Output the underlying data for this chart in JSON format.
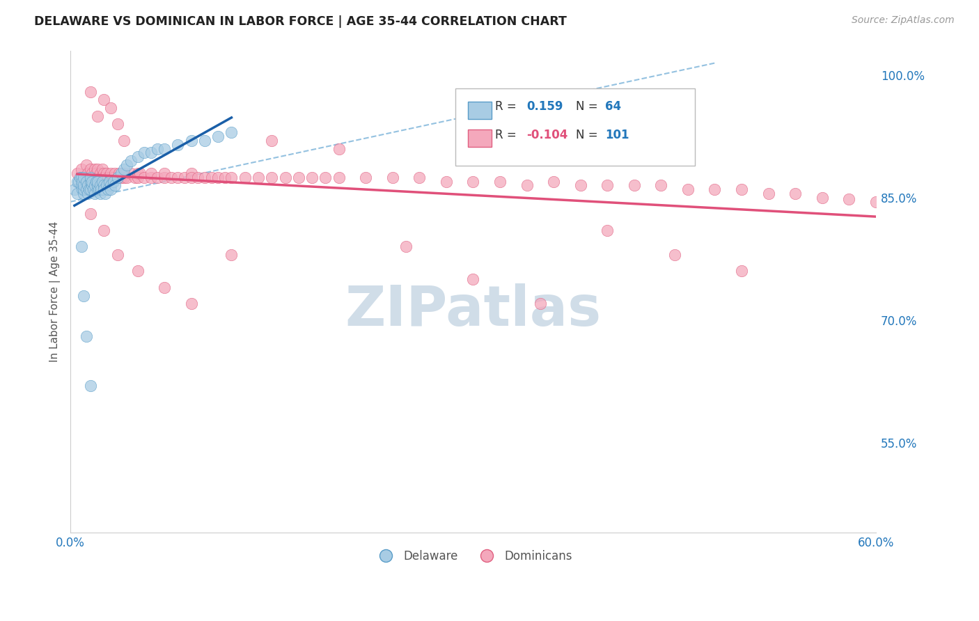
{
  "title": "DELAWARE VS DOMINICAN IN LABOR FORCE | AGE 35-44 CORRELATION CHART",
  "source": "Source: ZipAtlas.com",
  "ylabel": "In Labor Force | Age 35-44",
  "right_yticks": [
    0.55,
    0.7,
    0.85,
    1.0
  ],
  "right_yticklabels": [
    "55.0%",
    "70.0%",
    "85.0%",
    "100.0%"
  ],
  "xlim": [
    0.0,
    0.6
  ],
  "ylim": [
    0.44,
    1.03
  ],
  "legend_r_blue_val": "0.159",
  "legend_n_blue_val": "64",
  "legend_r_pink_val": "-0.104",
  "legend_n_pink_val": "101",
  "blue_color": "#a8cce4",
  "blue_edge_color": "#5a9dc8",
  "pink_color": "#f4a8bc",
  "pink_edge_color": "#e06080",
  "blue_line_color": "#1a5fa8",
  "pink_line_color": "#e0507a",
  "dashed_line_color": "#88bbdd",
  "watermark": "ZIPatlas",
  "watermark_color": "#d0dde8",
  "background_color": "#ffffff",
  "grid_color": "#cccccc",
  "blue_scatter_x": [
    0.003,
    0.005,
    0.005,
    0.006,
    0.007,
    0.008,
    0.008,
    0.009,
    0.009,
    0.01,
    0.01,
    0.01,
    0.01,
    0.012,
    0.012,
    0.013,
    0.013,
    0.014,
    0.015,
    0.015,
    0.015,
    0.016,
    0.016,
    0.017,
    0.018,
    0.018,
    0.019,
    0.02,
    0.02,
    0.02,
    0.021,
    0.022,
    0.022,
    0.023,
    0.024,
    0.025,
    0.025,
    0.026,
    0.027,
    0.028,
    0.029,
    0.03,
    0.03,
    0.032,
    0.033,
    0.035,
    0.038,
    0.04,
    0.042,
    0.045,
    0.05,
    0.055,
    0.06,
    0.065,
    0.07,
    0.08,
    0.09,
    0.1,
    0.11,
    0.12,
    0.008,
    0.01,
    0.012,
    0.015
  ],
  "blue_scatter_y": [
    0.86,
    0.87,
    0.855,
    0.87,
    0.875,
    0.865,
    0.875,
    0.86,
    0.87,
    0.855,
    0.86,
    0.865,
    0.875,
    0.86,
    0.87,
    0.855,
    0.865,
    0.86,
    0.87,
    0.875,
    0.86,
    0.865,
    0.87,
    0.86,
    0.855,
    0.865,
    0.87,
    0.86,
    0.865,
    0.87,
    0.86,
    0.855,
    0.865,
    0.86,
    0.87,
    0.865,
    0.86,
    0.855,
    0.865,
    0.86,
    0.87,
    0.865,
    0.86,
    0.87,
    0.865,
    0.875,
    0.88,
    0.885,
    0.89,
    0.895,
    0.9,
    0.905,
    0.905,
    0.91,
    0.91,
    0.915,
    0.92,
    0.92,
    0.925,
    0.93,
    0.79,
    0.73,
    0.68,
    0.62
  ],
  "pink_scatter_x": [
    0.005,
    0.008,
    0.01,
    0.012,
    0.013,
    0.015,
    0.015,
    0.016,
    0.017,
    0.018,
    0.019,
    0.02,
    0.02,
    0.022,
    0.023,
    0.024,
    0.025,
    0.025,
    0.027,
    0.028,
    0.03,
    0.03,
    0.032,
    0.033,
    0.035,
    0.036,
    0.038,
    0.04,
    0.04,
    0.042,
    0.045,
    0.048,
    0.05,
    0.05,
    0.052,
    0.055,
    0.06,
    0.06,
    0.065,
    0.07,
    0.07,
    0.075,
    0.08,
    0.085,
    0.09,
    0.09,
    0.095,
    0.1,
    0.105,
    0.11,
    0.115,
    0.12,
    0.13,
    0.14,
    0.15,
    0.16,
    0.17,
    0.18,
    0.19,
    0.2,
    0.22,
    0.24,
    0.26,
    0.28,
    0.3,
    0.32,
    0.34,
    0.36,
    0.38,
    0.4,
    0.42,
    0.44,
    0.46,
    0.48,
    0.5,
    0.52,
    0.54,
    0.56,
    0.58,
    0.6,
    0.025,
    0.03,
    0.035,
    0.04,
    0.015,
    0.02,
    0.015,
    0.025,
    0.035,
    0.05,
    0.07,
    0.09,
    0.12,
    0.15,
    0.2,
    0.25,
    0.3,
    0.35,
    0.4,
    0.45,
    0.5
  ],
  "pink_scatter_y": [
    0.88,
    0.885,
    0.875,
    0.89,
    0.88,
    0.875,
    0.885,
    0.88,
    0.875,
    0.885,
    0.88,
    0.875,
    0.885,
    0.88,
    0.875,
    0.885,
    0.88,
    0.875,
    0.88,
    0.875,
    0.875,
    0.88,
    0.875,
    0.88,
    0.875,
    0.88,
    0.875,
    0.875,
    0.88,
    0.875,
    0.88,
    0.875,
    0.88,
    0.875,
    0.88,
    0.875,
    0.875,
    0.88,
    0.875,
    0.875,
    0.88,
    0.875,
    0.875,
    0.875,
    0.88,
    0.875,
    0.875,
    0.875,
    0.875,
    0.875,
    0.875,
    0.875,
    0.875,
    0.875,
    0.875,
    0.875,
    0.875,
    0.875,
    0.875,
    0.875,
    0.875,
    0.875,
    0.875,
    0.87,
    0.87,
    0.87,
    0.865,
    0.87,
    0.865,
    0.865,
    0.865,
    0.865,
    0.86,
    0.86,
    0.86,
    0.855,
    0.855,
    0.85,
    0.848,
    0.845,
    0.97,
    0.96,
    0.94,
    0.92,
    0.98,
    0.95,
    0.83,
    0.81,
    0.78,
    0.76,
    0.74,
    0.72,
    0.78,
    0.92,
    0.91,
    0.79,
    0.75,
    0.72,
    0.81,
    0.78,
    0.76
  ]
}
